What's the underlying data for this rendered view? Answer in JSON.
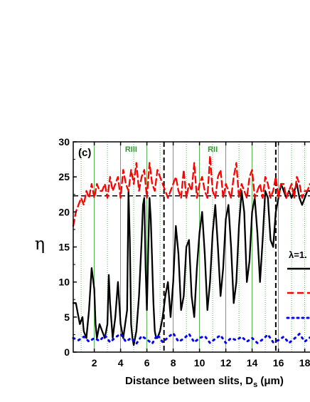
{
  "chart_data": {
    "type": "line",
    "panel_label": "(c)",
    "ylabel": "η",
    "xlabel": {
      "main": "Distance between slits, D",
      "sub": "s",
      "unit": " (μm)"
    },
    "xlim": [
      0.4,
      18.4
    ],
    "ylim": [
      0,
      30
    ],
    "x_ticks": [
      2,
      4,
      6,
      8,
      10,
      12,
      14,
      16,
      18
    ],
    "x_tick_labels": [
      "2",
      "4",
      "6",
      "8",
      "10",
      "12",
      "14",
      "16",
      "18"
    ],
    "y_ticks": [
      0,
      5,
      10,
      15,
      20,
      25,
      30
    ],
    "y_tick_labels": [
      "0",
      "5",
      "10",
      "15",
      "20",
      "25",
      "30"
    ],
    "region_labels": [
      {
        "text": "RIII",
        "x": 4.8,
        "y": 28.6
      },
      {
        "text": "RII",
        "x": 11.0,
        "y": 28.6
      }
    ],
    "green_major_lines_x": [
      2,
      4,
      6,
      8,
      10,
      12,
      14,
      16
    ],
    "green_dotted_lines_x": [
      1,
      3,
      5,
      7,
      9,
      11,
      13,
      15,
      17,
      18
    ],
    "vertical_dashed_lines_x": [
      7.3,
      15.8
    ],
    "horizontal_dashed_line_y": 22.3,
    "legend_title": "λ=1.",
    "series": [
      {
        "style": "solid",
        "color": "#000000",
        "x": [
          0.4,
          0.6,
          0.8,
          0.9,
          1.1,
          1.2,
          1.4,
          1.6,
          1.8,
          2.0,
          2.1,
          2.2,
          2.4,
          2.6,
          2.8,
          3.0,
          3.1,
          3.2,
          3.4,
          3.6,
          3.8,
          4.0,
          4.2,
          4.5,
          4.6,
          4.7,
          4.8,
          4.9,
          5.0,
          5.2,
          5.4,
          5.6,
          5.7,
          5.8,
          5.9,
          6.0,
          6.1,
          6.2,
          6.3,
          6.5,
          6.6,
          6.7,
          6.8,
          7.0,
          7.2,
          7.4,
          7.6,
          7.8,
          8.0,
          8.2,
          8.4,
          8.6,
          8.8,
          9.0,
          9.2,
          9.4,
          9.6,
          9.8,
          10.0,
          10.2,
          10.4,
          10.6,
          10.8,
          11.0,
          11.2,
          11.4,
          11.6,
          11.8,
          12.0,
          12.2,
          12.4,
          12.6,
          12.8,
          13.0,
          13.2,
          13.4,
          13.6,
          13.8,
          14.0,
          14.2,
          14.4,
          14.6,
          14.8,
          15.0,
          15.2,
          15.4,
          15.6,
          15.8,
          16.0,
          16.2,
          16.4,
          16.6,
          16.8,
          17.0,
          17.2,
          17.4,
          17.6,
          17.8,
          18.0,
          18.2,
          18.4
        ],
        "y": [
          7,
          7,
          5,
          4,
          5,
          3,
          2,
          6,
          12,
          9,
          4,
          2,
          4,
          3,
          2,
          4,
          11,
          7,
          2,
          5,
          10,
          4,
          2,
          6,
          23,
          16,
          4,
          2,
          1,
          3,
          8,
          16,
          21,
          22,
          12,
          6,
          14,
          22,
          19,
          7,
          3,
          2,
          2,
          3,
          5,
          8,
          10,
          5,
          10,
          18,
          14,
          6,
          8,
          15,
          16,
          8,
          5,
          12,
          17,
          20,
          14,
          6,
          10,
          17,
          21,
          15,
          8,
          12,
          19,
          21,
          15,
          7,
          10,
          18,
          23,
          20,
          10,
          13,
          20,
          22,
          17,
          10,
          16,
          23,
          22,
          16,
          15,
          20,
          22,
          24,
          23,
          22,
          23,
          22,
          23,
          24,
          22,
          21,
          22,
          23,
          23
        ],
        "name": ""
      },
      {
        "style": "dashed",
        "color": "#ff0000",
        "x": [
          0.4,
          0.6,
          0.8,
          1.0,
          1.2,
          1.4,
          1.6,
          1.8,
          2.0,
          2.2,
          2.4,
          2.6,
          2.8,
          3.0,
          3.2,
          3.4,
          3.6,
          3.8,
          4.0,
          4.2,
          4.4,
          4.6,
          4.8,
          5.0,
          5.2,
          5.4,
          5.6,
          5.8,
          6.0,
          6.2,
          6.4,
          6.6,
          6.8,
          7.0,
          7.2,
          7.4,
          7.6,
          7.8,
          8.0,
          8.2,
          8.4,
          8.6,
          8.8,
          9.0,
          9.2,
          9.4,
          9.6,
          9.8,
          10.0,
          10.2,
          10.4,
          10.6,
          10.8,
          11.0,
          11.2,
          11.4,
          11.6,
          11.8,
          12.0,
          12.2,
          12.4,
          12.6,
          12.8,
          13.0,
          13.2,
          13.4,
          13.6,
          13.8,
          14.0,
          14.2,
          14.4,
          14.6,
          14.8,
          15.0,
          15.2,
          15.4,
          15.6,
          15.8,
          16.0,
          16.2,
          16.4,
          16.6,
          16.8,
          17.0,
          17.2,
          17.4,
          17.6,
          17.8,
          18.0,
          18.2,
          18.4
        ],
        "y": [
          18,
          20,
          21,
          22,
          21,
          23,
          22,
          24,
          22,
          24,
          23,
          23,
          24,
          22,
          25,
          23,
          24,
          25,
          22,
          26,
          24,
          23,
          26,
          24,
          27,
          23,
          25,
          26,
          22,
          27,
          24,
          23,
          26,
          25,
          24,
          23,
          22,
          23,
          24,
          25,
          23,
          22,
          26,
          22,
          24,
          23,
          27,
          22,
          24,
          25,
          23,
          22,
          28,
          23,
          22,
          25,
          26,
          22,
          24,
          23,
          22,
          25,
          27,
          22,
          24,
          23,
          22,
          25,
          26,
          22,
          23,
          24,
          22,
          25,
          24,
          22,
          23,
          25,
          22,
          24,
          24,
          22,
          23,
          24,
          22,
          25,
          24,
          22,
          23,
          23,
          24
        ],
        "name": ""
      },
      {
        "style": "dotted",
        "color": "#0000ff",
        "x": [
          0.4,
          0.8,
          1.2,
          1.6,
          2.0,
          2.4,
          2.8,
          3.2,
          3.6,
          4.0,
          4.4,
          4.8,
          5.2,
          5.6,
          6.0,
          6.4,
          6.8,
          7.2,
          7.6,
          8.0,
          8.4,
          8.8,
          9.2,
          9.6,
          10.0,
          10.4,
          10.8,
          11.2,
          11.6,
          12.0,
          12.4,
          12.8,
          13.2,
          13.6,
          14.0,
          14.4,
          14.8,
          15.2,
          15.6,
          16.0,
          16.4,
          16.8,
          17.2,
          17.6,
          18.0,
          18.4
        ],
        "y": [
          2.0,
          1.7,
          2.2,
          1.5,
          2.0,
          1.6,
          2.4,
          1.4,
          2.1,
          2.6,
          1.5,
          2.0,
          1.2,
          2.3,
          1.8,
          1.2,
          2.5,
          1.4,
          2.1,
          2.7,
          1.5,
          1.9,
          2.6,
          1.4,
          2.0,
          2.3,
          1.3,
          1.9,
          2.4,
          1.3,
          2.0,
          1.7,
          2.2,
          1.5,
          2.0,
          1.3,
          1.8,
          2.5,
          1.4,
          1.7,
          2.2,
          1.3,
          1.9,
          2.6,
          1.5,
          2.1
        ],
        "name": ""
      }
    ]
  }
}
